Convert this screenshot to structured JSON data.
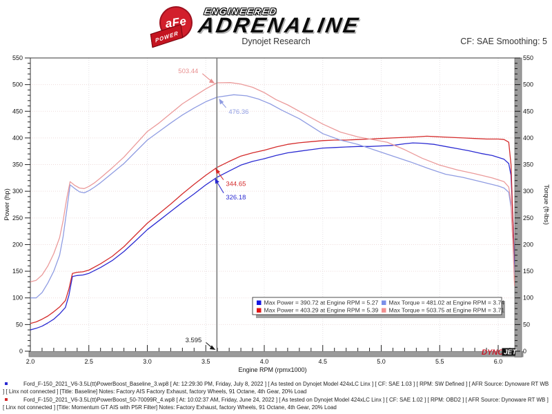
{
  "header": {
    "brand": {
      "badge_text": "aFe",
      "ribbon_text": "POWER",
      "line1": "ENGINEERED",
      "line2": "ADRENALINE"
    },
    "title": "Dynojet Research",
    "smoothing": "CF: SAE Smoothing: 5"
  },
  "chart_data": {
    "type": "line",
    "xlabel": "Engine RPM (rpmx1000)",
    "ylabel_left": "Power (hp)",
    "ylabel_right": "Torque (ft-lbs)",
    "xlim": [
      2.0,
      6.14
    ],
    "ylim_left": [
      0,
      550
    ],
    "ylim_right": [
      0,
      550
    ],
    "x_ticks": [
      2.0,
      2.5,
      3.0,
      3.5,
      4.0,
      4.5,
      5.0,
      5.5,
      6.0
    ],
    "x_minor_step": 0.1,
    "y_major_step": 50,
    "y_minor_step": 10,
    "grid": "dotted",
    "cursor": {
      "rpm": 3.595,
      "label": "3.595",
      "color": "#1a1a1a",
      "offset": [
        -20,
        -11
      ]
    },
    "series": [
      {
        "name": "baseline-power",
        "axis": "left",
        "unit": "hp",
        "color": "#2a2ad2",
        "points": [
          [
            2.0,
            40
          ],
          [
            2.05,
            43
          ],
          [
            2.1,
            47
          ],
          [
            2.15,
            53
          ],
          [
            2.2,
            60
          ],
          [
            2.25,
            70
          ],
          [
            2.3,
            82
          ],
          [
            2.33,
            105
          ],
          [
            2.36,
            140
          ],
          [
            2.4,
            142
          ],
          [
            2.45,
            143
          ],
          [
            2.5,
            146
          ],
          [
            2.6,
            157
          ],
          [
            2.7,
            170
          ],
          [
            2.8,
            187
          ],
          [
            2.9,
            207
          ],
          [
            3.0,
            228
          ],
          [
            3.1,
            245
          ],
          [
            3.2,
            262
          ],
          [
            3.3,
            279
          ],
          [
            3.4,
            295
          ],
          [
            3.5,
            312
          ],
          [
            3.595,
            326.18
          ],
          [
            3.7,
            338
          ],
          [
            3.8,
            349
          ],
          [
            3.9,
            356
          ],
          [
            4.0,
            361
          ],
          [
            4.1,
            367
          ],
          [
            4.2,
            372
          ],
          [
            4.3,
            375
          ],
          [
            4.4,
            378
          ],
          [
            4.5,
            381
          ],
          [
            4.6,
            382
          ],
          [
            4.7,
            383
          ],
          [
            4.8,
            384
          ],
          [
            4.9,
            384
          ],
          [
            5.0,
            385
          ],
          [
            5.1,
            386
          ],
          [
            5.2,
            389
          ],
          [
            5.27,
            390.72
          ],
          [
            5.35,
            390
          ],
          [
            5.45,
            388
          ],
          [
            5.55,
            384
          ],
          [
            5.65,
            380
          ],
          [
            5.75,
            376
          ],
          [
            5.85,
            371
          ],
          [
            5.95,
            367
          ],
          [
            6.05,
            360
          ],
          [
            6.09,
            352
          ],
          [
            6.11,
            330
          ],
          [
            6.13,
            230
          ],
          [
            6.14,
            155
          ]
        ]
      },
      {
        "name": "afe-power",
        "axis": "left",
        "unit": "hp",
        "color": "#d42a2a",
        "points": [
          [
            2.0,
            52
          ],
          [
            2.05,
            55
          ],
          [
            2.1,
            60
          ],
          [
            2.15,
            66
          ],
          [
            2.2,
            74
          ],
          [
            2.25,
            83
          ],
          [
            2.3,
            95
          ],
          [
            2.33,
            117
          ],
          [
            2.36,
            146
          ],
          [
            2.4,
            148
          ],
          [
            2.45,
            149
          ],
          [
            2.5,
            152
          ],
          [
            2.6,
            164
          ],
          [
            2.7,
            178
          ],
          [
            2.8,
            196
          ],
          [
            2.9,
            218
          ],
          [
            3.0,
            240
          ],
          [
            3.1,
            258
          ],
          [
            3.2,
            276
          ],
          [
            3.3,
            295
          ],
          [
            3.4,
            313
          ],
          [
            3.5,
            330
          ],
          [
            3.595,
            344.65
          ],
          [
            3.7,
            356
          ],
          [
            3.8,
            366
          ],
          [
            3.9,
            372
          ],
          [
            4.0,
            377
          ],
          [
            4.1,
            383
          ],
          [
            4.2,
            388
          ],
          [
            4.3,
            391
          ],
          [
            4.4,
            393
          ],
          [
            4.5,
            395
          ],
          [
            4.6,
            396
          ],
          [
            4.7,
            396
          ],
          [
            4.8,
            397
          ],
          [
            4.9,
            398
          ],
          [
            5.0,
            399
          ],
          [
            5.1,
            400
          ],
          [
            5.2,
            401
          ],
          [
            5.3,
            402
          ],
          [
            5.39,
            403.29
          ],
          [
            5.5,
            402
          ],
          [
            5.6,
            401
          ],
          [
            5.7,
            400
          ],
          [
            5.8,
            399
          ],
          [
            5.9,
            398
          ],
          [
            6.0,
            398
          ],
          [
            6.05,
            397
          ],
          [
            6.09,
            392
          ],
          [
            6.11,
            350
          ],
          [
            6.13,
            220
          ],
          [
            6.14,
            128
          ]
        ]
      },
      {
        "name": "baseline-torque",
        "axis": "right",
        "unit": "ft-lbs",
        "color": "#8f9ce2",
        "points": [
          [
            2.0,
            100
          ],
          [
            2.05,
            100
          ],
          [
            2.1,
            110
          ],
          [
            2.15,
            128
          ],
          [
            2.2,
            150
          ],
          [
            2.25,
            180
          ],
          [
            2.28,
            215
          ],
          [
            2.31,
            262
          ],
          [
            2.34,
            312
          ],
          [
            2.38,
            305
          ],
          [
            2.42,
            299
          ],
          [
            2.46,
            297
          ],
          [
            2.5,
            301
          ],
          [
            2.55,
            308
          ],
          [
            2.6,
            316
          ],
          [
            2.7,
            334
          ],
          [
            2.8,
            352
          ],
          [
            2.9,
            374
          ],
          [
            3.0,
            396
          ],
          [
            3.1,
            412
          ],
          [
            3.2,
            428
          ],
          [
            3.3,
            443
          ],
          [
            3.4,
            456
          ],
          [
            3.5,
            468
          ],
          [
            3.595,
            476.36
          ],
          [
            3.74,
            481.02
          ],
          [
            3.85,
            479
          ],
          [
            3.95,
            473
          ],
          [
            4.05,
            464
          ],
          [
            4.15,
            452
          ],
          [
            4.3,
            436
          ],
          [
            4.5,
            408
          ],
          [
            4.65,
            396
          ],
          [
            4.8,
            388
          ],
          [
            4.95,
            377
          ],
          [
            5.1,
            366
          ],
          [
            5.25,
            355
          ],
          [
            5.4,
            343
          ],
          [
            5.55,
            332
          ],
          [
            5.7,
            326
          ],
          [
            5.85,
            318
          ],
          [
            6.0,
            310
          ],
          [
            6.05,
            306
          ],
          [
            6.09,
            298
          ],
          [
            6.11,
            270
          ],
          [
            6.13,
            190
          ],
          [
            6.14,
            142
          ]
        ]
      },
      {
        "name": "afe-torque",
        "axis": "right",
        "unit": "ft-lbs",
        "color": "#eb9a9a",
        "points": [
          [
            2.0,
            130
          ],
          [
            2.05,
            133
          ],
          [
            2.1,
            143
          ],
          [
            2.15,
            160
          ],
          [
            2.2,
            183
          ],
          [
            2.25,
            213
          ],
          [
            2.28,
            245
          ],
          [
            2.31,
            285
          ],
          [
            2.34,
            318
          ],
          [
            2.38,
            311
          ],
          [
            2.42,
            306
          ],
          [
            2.46,
            305
          ],
          [
            2.5,
            309
          ],
          [
            2.55,
            316
          ],
          [
            2.6,
            325
          ],
          [
            2.7,
            344
          ],
          [
            2.8,
            364
          ],
          [
            2.9,
            388
          ],
          [
            3.0,
            412
          ],
          [
            3.1,
            428
          ],
          [
            3.2,
            446
          ],
          [
            3.3,
            464
          ],
          [
            3.4,
            478
          ],
          [
            3.5,
            492
          ],
          [
            3.595,
            503.44
          ],
          [
            3.71,
            503.75
          ],
          [
            3.8,
            501
          ],
          [
            3.9,
            495
          ],
          [
            4.0,
            485
          ],
          [
            4.1,
            472
          ],
          [
            4.2,
            462
          ],
          [
            4.35,
            444
          ],
          [
            4.5,
            426
          ],
          [
            4.65,
            411
          ],
          [
            4.8,
            402
          ],
          [
            4.95,
            396
          ],
          [
            5.05,
            392
          ],
          [
            5.2,
            378
          ],
          [
            5.35,
            362
          ],
          [
            5.5,
            349
          ],
          [
            5.65,
            340
          ],
          [
            5.8,
            333
          ],
          [
            5.95,
            325
          ],
          [
            6.05,
            318
          ],
          [
            6.09,
            308
          ],
          [
            6.11,
            280
          ],
          [
            6.13,
            180
          ],
          [
            6.14,
            122
          ]
        ]
      }
    ],
    "annotations": [
      {
        "text": "503.44",
        "color": "#e88f8f",
        "rpm": 3.595,
        "value": 503.44,
        "offset": [
          -24,
          -15
        ],
        "anchor": "end",
        "tip_nudge": [
          -3,
          1
        ]
      },
      {
        "text": "476.36",
        "color": "#8f9ce2",
        "rpm": 3.595,
        "value": 476.36,
        "offset": [
          14,
          22
        ],
        "anchor": "start",
        "tip_nudge": [
          3,
          2
        ]
      },
      {
        "text": "344.65",
        "color": "#d42a2a",
        "rpm": 3.595,
        "value": 344.65,
        "offset": [
          15,
          26
        ],
        "anchor": "start",
        "tip_nudge": [
          -2,
          1
        ]
      },
      {
        "text": "326.18",
        "color": "#2a2ad2",
        "rpm": 3.595,
        "value": 326.18,
        "offset": [
          16,
          31
        ],
        "anchor": "start",
        "tip_nudge": [
          -3,
          1
        ]
      }
    ],
    "legend": {
      "position": "bottom-center",
      "items": [
        {
          "color": "#1515e0",
          "label": "Max Power = 390.72 at Engine RPM = 5.27"
        },
        {
          "color": "#e01515",
          "label": "Max Power = 403.29 at Engine RPM = 5.39"
        },
        {
          "color": "#7b8fe8",
          "label": "Max Torque = 481.02 at Engine RPM = 3.74"
        },
        {
          "color": "#f29090",
          "label": "Max Torque = 503.75 at Engine RPM = 3.71"
        }
      ]
    },
    "watermark": {
      "part1": "DYNO",
      "part2": "JET",
      "part1_color": "#c81828",
      "part2_bg": "#111111",
      "part2_color": "#ffffff"
    }
  },
  "footer": {
    "runs": [
      {
        "bullet_color": "#2a2ad2",
        "text": "Ford_F-150_2021_V6-3.5L(tt)PowerBoost_Baseline_3.wp8 [ At: 12:29:30 PM, Friday, July 8, 2022 ] [ As tested on Dynojet Model 424xLC Linx ] [ CF: SAE 1.03 ] [ RPM: SW Defined ] [ AFR Source: Dynoware RT WB ] [ Linx not connected ] [Title: Baseline]  Notes: Factory AIS  Factory Exhaust, factory Wheels, 91 Octane, 4th Gear, 20% Load"
      },
      {
        "bullet_color": "#d42a2a",
        "text": "Ford_F-150_2021_V6-3.5L(tt)PowerBoost_50-70099R_4.wp8 [ At: 10:02:37 AM, Friday, June 24, 2022 ] [ As tested on Dynojet Model 424xLC Linx ] [ CF: SAE 1.02 ] [ RPM: OBD2 ] [ AFR Source: Dynoware RT WB ] [ Linx not connected ] [Title: Momentum GT AIS with P5R Filter]  Notes: Factory Exhaust, factory Wheels, 91 Octane, 4th Gear, 20% Load"
      }
    ]
  }
}
